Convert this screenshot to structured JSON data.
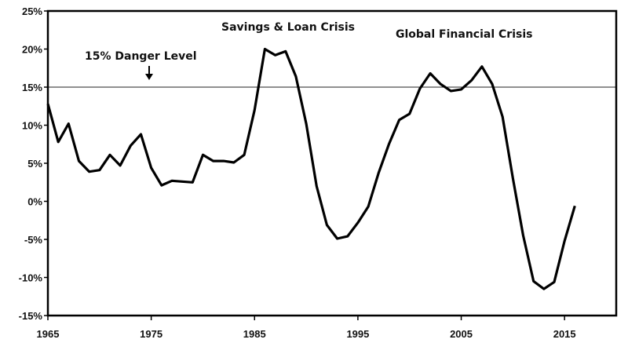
{
  "chart_data": {
    "type": "line",
    "title": "",
    "xlabel": "",
    "ylabel": "",
    "xlim": [
      1965,
      2020
    ],
    "ylim": [
      -15,
      25
    ],
    "grid": false,
    "x_ticks": [
      "1965",
      "1975",
      "1985",
      "1995",
      "2005",
      "2015"
    ],
    "y_ticks": [
      "25%",
      "20%",
      "15%",
      "10%",
      "5%",
      "0%",
      "-5%",
      "-10%",
      "-15%"
    ],
    "x": [
      1965,
      1966,
      1967,
      1968,
      1969,
      1970,
      1971,
      1972,
      1973,
      1974,
      1975,
      1976,
      1977,
      1978,
      1979,
      1980,
      1981,
      1982,
      1983,
      1984,
      1985,
      1986,
      1987,
      1988,
      1989,
      1990,
      1991,
      1992,
      1993,
      1994,
      1995,
      1996,
      1997,
      1998,
      1999,
      2000,
      2001,
      2002,
      2003,
      2004,
      2005,
      2006,
      2007,
      2008,
      2009,
      2010,
      2011,
      2012,
      2013,
      2014,
      2015,
      2016
    ],
    "series": [
      {
        "values": [
          12.8,
          7.8,
          10.2,
          5.3,
          3.9,
          4.1,
          6.1,
          4.7,
          7.3,
          8.8,
          4.4,
          2.1,
          2.7,
          2.6,
          2.5,
          6.1,
          5.3,
          5.3,
          5.1,
          6.1,
          12.0,
          20.0,
          19.2,
          19.7,
          16.4,
          10.2,
          2.0,
          -3.1,
          -4.9,
          -4.6,
          -2.8,
          -0.7,
          3.7,
          7.5,
          10.7,
          11.5,
          14.8,
          16.8,
          15.4,
          14.5,
          14.7,
          15.9,
          17.7,
          15.4,
          11.1,
          3.0,
          -4.5,
          -10.5,
          -11.5,
          -10.6,
          -5.2,
          -0.6
        ],
        "color": "#000000"
      }
    ],
    "reference_line": {
      "value": 15,
      "color": "#222222"
    },
    "annotations": [
      {
        "text": "15% Danger Level",
        "arrow": "down"
      },
      {
        "text": "Savings & Loan Crisis"
      },
      {
        "text": "Global Financial Crisis"
      }
    ]
  }
}
